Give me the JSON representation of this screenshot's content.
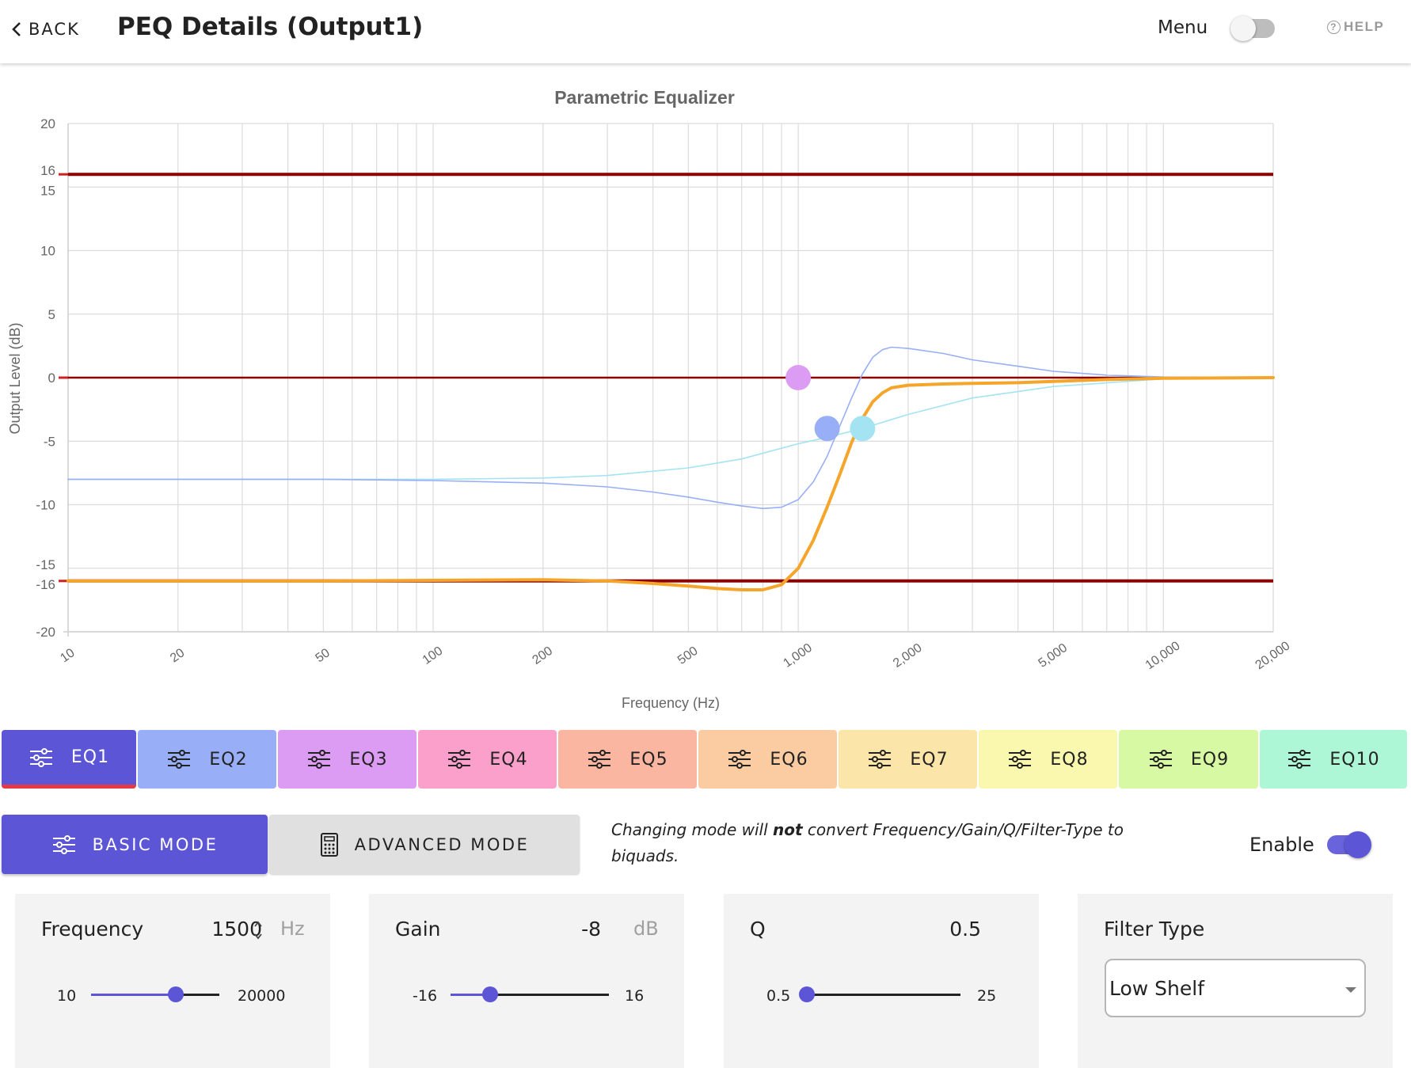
{
  "header": {
    "back_label": "BACK",
    "title": "PEQ Details (Output1)",
    "menu_label": "Menu",
    "help_label": "HELP"
  },
  "colors": {
    "accent": "#5c55d6",
    "limit_line": "#8b0000",
    "result_curve": "#f6a52b",
    "active_tab_underline": "#e53946"
  },
  "chart_data": {
    "type": "line",
    "title": "Parametric Equalizer",
    "xlabel": "Frequency (Hz)",
    "ylabel": "Output Level (dB)",
    "x_scale": "log",
    "xlim": [
      10,
      20000
    ],
    "ylim": [
      -20,
      20
    ],
    "grid": true,
    "x_tick_labels": [
      {
        "v": 10,
        "t": "10"
      },
      {
        "v": 20,
        "t": "20"
      },
      {
        "v": 50,
        "t": "50"
      },
      {
        "v": 100,
        "t": "100"
      },
      {
        "v": 200,
        "t": "200"
      },
      {
        "v": 500,
        "t": "500"
      },
      {
        "v": 1000,
        "t": "1,000"
      },
      {
        "v": 2000,
        "t": "2,000"
      },
      {
        "v": 5000,
        "t": "5,000"
      },
      {
        "v": 10000,
        "t": "10,000"
      },
      {
        "v": 20000,
        "t": "20,000"
      }
    ],
    "y_tick_labels": [
      {
        "v": 20,
        "t": "20"
      },
      {
        "v": 16,
        "t": "16"
      },
      {
        "v": 15,
        "t": "15"
      },
      {
        "v": 10,
        "t": "10"
      },
      {
        "v": 5,
        "t": "5"
      },
      {
        "v": 0,
        "t": "0"
      },
      {
        "v": -5,
        "t": "-5"
      },
      {
        "v": -10,
        "t": "-10"
      },
      {
        "v": -15,
        "t": "-15"
      },
      {
        "v": -16,
        "t": "-16"
      },
      {
        "v": -20,
        "t": "-20"
      }
    ],
    "limit_lines": [
      16,
      0,
      -16
    ],
    "series": [
      {
        "color": "#a3e3f2",
        "width": 1.6,
        "x": [
          10,
          50,
          100,
          200,
          300,
          500,
          700,
          1000,
          1200,
          1500,
          2000,
          3000,
          5000,
          10000,
          20000
        ],
        "y": [
          -8.0,
          -8.0,
          -8.0,
          -7.9,
          -7.7,
          -7.1,
          -6.4,
          -5.2,
          -4.7,
          -4.0,
          -2.9,
          -1.6,
          -0.7,
          -0.1,
          0.0
        ]
      },
      {
        "color": "#98aef7",
        "width": 1.6,
        "x": [
          10,
          50,
          100,
          200,
          300,
          400,
          500,
          600,
          700,
          800,
          900,
          1000,
          1100,
          1200,
          1300,
          1400,
          1500,
          1600,
          1700,
          1800,
          2000,
          2500,
          3000,
          4000,
          5000,
          7000,
          10000,
          20000
        ],
        "y": [
          -8.0,
          -8.0,
          -8.1,
          -8.3,
          -8.6,
          -9.0,
          -9.4,
          -9.8,
          -10.1,
          -10.3,
          -10.2,
          -9.6,
          -8.2,
          -6.2,
          -3.8,
          -1.6,
          0.3,
          1.6,
          2.2,
          2.4,
          2.3,
          1.9,
          1.4,
          0.9,
          0.5,
          0.2,
          0.05,
          0.0
        ]
      },
      {
        "color": "#f6a52b",
        "width": 4,
        "x": [
          10,
          50,
          100,
          200,
          300,
          400,
          500,
          600,
          700,
          800,
          900,
          1000,
          1100,
          1200,
          1300,
          1400,
          1500,
          1600,
          1700,
          1800,
          2000,
          2500,
          3000,
          4000,
          5000,
          7000,
          10000,
          20000
        ],
        "y": [
          -16.0,
          -16.0,
          -15.95,
          -15.9,
          -16.0,
          -16.2,
          -16.4,
          -16.6,
          -16.7,
          -16.7,
          -16.3,
          -15.0,
          -12.8,
          -10.2,
          -7.6,
          -5.1,
          -3.2,
          -1.9,
          -1.2,
          -0.8,
          -0.6,
          -0.5,
          -0.45,
          -0.4,
          -0.3,
          -0.15,
          -0.05,
          0.0
        ]
      }
    ],
    "control_points": [
      {
        "x": 1000,
        "y": 0,
        "color": "#dc9cf4"
      },
      {
        "x": 1200,
        "y": -4,
        "color": "#98aef7"
      },
      {
        "x": 1500,
        "y": -4,
        "color": "#a3e3f2"
      }
    ]
  },
  "eq_tabs": [
    {
      "label": "EQ1",
      "color": "#5c55d6",
      "active": true
    },
    {
      "label": "EQ2",
      "color": "#98aef7",
      "active": false
    },
    {
      "label": "EQ3",
      "color": "#dc9cf4",
      "active": false
    },
    {
      "label": "EQ4",
      "color": "#fba0ca",
      "active": false
    },
    {
      "label": "EQ5",
      "color": "#fbb6a1",
      "active": false
    },
    {
      "label": "EQ6",
      "color": "#fbcca2",
      "active": false
    },
    {
      "label": "EQ7",
      "color": "#fce5a8",
      "active": false
    },
    {
      "label": "EQ8",
      "color": "#f9f8ae",
      "active": false
    },
    {
      "label": "EQ9",
      "color": "#d7f9a3",
      "active": false
    },
    {
      "label": "EQ10",
      "color": "#adf7d6",
      "active": false
    }
  ],
  "mode": {
    "basic_label": "BASIC MODE",
    "advanced_label": "ADVANCED MODE",
    "note_part1": "Changing mode will ",
    "note_emph": "not",
    "note_part2": " convert Frequency/Gain/Q/Filter-Type to biquads.",
    "enable_label": "Enable",
    "enabled": true
  },
  "controls": {
    "frequency": {
      "label": "Frequency",
      "value": "1500",
      "unit": "Hz",
      "min": "10",
      "max": "20000",
      "slider_fraction": 0.66
    },
    "gain": {
      "label": "Gain",
      "value": "-8",
      "unit": "dB",
      "min": "-16",
      "max": "16",
      "slider_fraction": 0.25
    },
    "q": {
      "label": "Q",
      "value": "0.5",
      "min": "0.5",
      "max": "25",
      "slider_fraction": 0.0
    },
    "filter_type": {
      "label": "Filter Type",
      "value": "Low Shelf"
    }
  }
}
